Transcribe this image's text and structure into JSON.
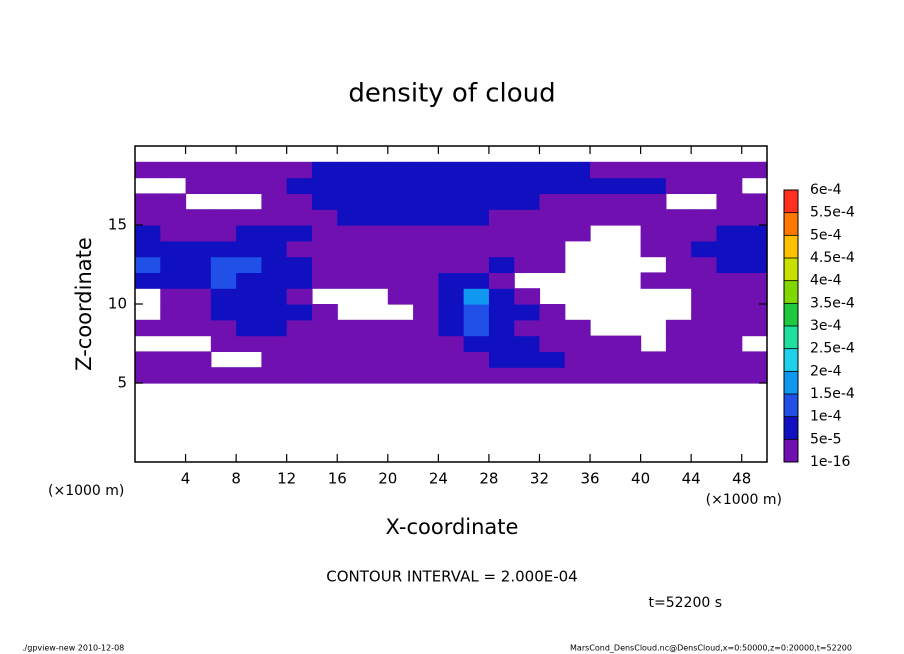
{
  "chart_data": {
    "type": "contour",
    "title": "density of cloud",
    "x_label": "X-coordinate",
    "y_label": "Z-coordinate",
    "x_unit_left": "(×1000 m)",
    "x_unit_right": "(×1000 m)",
    "contour_note": "CONTOUR INTERVAL = 2.000E-04",
    "time_note": "t=52200 s",
    "footer_left": "./gpview-new   2010-12-08",
    "footer_right": "MarsCond_DensCloud.nc@DensCloud,x=0:50000,z=0:20000,t=52200",
    "xlim": [
      0,
      50
    ],
    "ylim": [
      0,
      20
    ],
    "xticks": [
      4,
      8,
      12,
      16,
      20,
      24,
      28,
      32,
      36,
      40,
      44,
      48
    ],
    "yticks": [
      5,
      10,
      15
    ],
    "x": [
      1,
      3,
      5,
      7,
      9,
      11,
      13,
      15,
      17,
      19,
      21,
      23,
      25,
      27,
      29,
      31,
      33,
      35,
      37,
      39,
      41,
      43,
      45,
      47,
      49
    ],
    "z": [
      0.5,
      1.5,
      2.5,
      3.5,
      4.5,
      5.5,
      6.5,
      7.5,
      8.5,
      9.5,
      10.5,
      11.5,
      12.5,
      13.5,
      14.5,
      15.5,
      16.5,
      17.5,
      18.5,
      19.5
    ],
    "field": [
      [
        null,
        null,
        null,
        null,
        null,
        null,
        null,
        null,
        null,
        null,
        null,
        null,
        null,
        null,
        null,
        null,
        null,
        null,
        null,
        null,
        null,
        null,
        null,
        null,
        null
      ],
      [
        null,
        null,
        null,
        null,
        null,
        null,
        null,
        null,
        null,
        null,
        null,
        null,
        null,
        null,
        null,
        null,
        null,
        null,
        null,
        null,
        null,
        null,
        null,
        null,
        null
      ],
      [
        null,
        null,
        null,
        null,
        null,
        null,
        null,
        null,
        null,
        null,
        null,
        null,
        null,
        null,
        null,
        null,
        null,
        null,
        null,
        null,
        null,
        null,
        null,
        null,
        null
      ],
      [
        null,
        null,
        null,
        null,
        null,
        null,
        null,
        null,
        null,
        null,
        null,
        null,
        null,
        null,
        null,
        null,
        null,
        null,
        null,
        null,
        null,
        null,
        null,
        null,
        null
      ],
      [
        null,
        null,
        null,
        null,
        null,
        null,
        null,
        null,
        null,
        null,
        null,
        null,
        null,
        null,
        null,
        null,
        null,
        null,
        null,
        null,
        null,
        null,
        null,
        null,
        null
      ],
      [
        1e-16,
        1e-16,
        1e-16,
        1e-16,
        1e-16,
        1e-16,
        1e-16,
        1e-16,
        1e-16,
        1e-16,
        1e-16,
        1e-16,
        1e-16,
        1e-16,
        1e-16,
        1e-16,
        1e-16,
        1e-16,
        1e-16,
        1e-16,
        1e-16,
        1e-16,
        1e-16,
        1e-16,
        1e-16
      ],
      [
        1e-16,
        1e-16,
        1e-16,
        null,
        null,
        1e-16,
        1e-16,
        1e-16,
        1e-16,
        1e-16,
        1e-16,
        1e-16,
        1e-16,
        1e-16,
        5e-05,
        5e-05,
        5e-05,
        1e-16,
        1e-16,
        1e-16,
        1e-16,
        1e-16,
        1e-16,
        1e-16,
        1e-16
      ],
      [
        null,
        null,
        null,
        1e-16,
        1e-16,
        1e-16,
        1e-16,
        1e-16,
        1e-16,
        1e-16,
        1e-16,
        1e-16,
        1e-16,
        5e-05,
        5e-05,
        5e-05,
        1e-16,
        1e-16,
        1e-16,
        1e-16,
        null,
        1e-16,
        1e-16,
        1e-16,
        null
      ],
      [
        1e-16,
        1e-16,
        1e-16,
        1e-16,
        5e-05,
        5e-05,
        1e-16,
        1e-16,
        1e-16,
        1e-16,
        1e-16,
        1e-16,
        5e-05,
        0.0001,
        5e-05,
        1e-16,
        1e-16,
        1e-16,
        null,
        null,
        null,
        1e-16,
        1e-16,
        1e-16,
        1e-16
      ],
      [
        null,
        1e-16,
        1e-16,
        5e-05,
        5e-05,
        5e-05,
        5e-05,
        1e-16,
        null,
        null,
        null,
        1e-16,
        5e-05,
        0.0001,
        5e-05,
        5e-05,
        1e-16,
        null,
        null,
        null,
        null,
        null,
        1e-16,
        1e-16,
        1e-16
      ],
      [
        null,
        1e-16,
        1e-16,
        5e-05,
        5e-05,
        5e-05,
        1e-16,
        null,
        null,
        null,
        1e-16,
        1e-16,
        5e-05,
        0.00015,
        5e-05,
        1e-16,
        null,
        null,
        null,
        null,
        null,
        null,
        1e-16,
        1e-16,
        1e-16
      ],
      [
        5e-05,
        5e-05,
        5e-05,
        0.0001,
        5e-05,
        5e-05,
        5e-05,
        1e-16,
        1e-16,
        1e-16,
        1e-16,
        1e-16,
        5e-05,
        5e-05,
        1e-16,
        null,
        null,
        null,
        null,
        null,
        1e-16,
        1e-16,
        1e-16,
        1e-16,
        1e-16
      ],
      [
        0.0001,
        5e-05,
        5e-05,
        0.0001,
        0.0001,
        5e-05,
        5e-05,
        1e-16,
        1e-16,
        1e-16,
        1e-16,
        1e-16,
        1e-16,
        1e-16,
        5e-05,
        1e-16,
        1e-16,
        null,
        null,
        null,
        null,
        1e-16,
        1e-16,
        5e-05,
        5e-05
      ],
      [
        5e-05,
        5e-05,
        5e-05,
        5e-05,
        5e-05,
        5e-05,
        1e-16,
        1e-16,
        1e-16,
        1e-16,
        1e-16,
        1e-16,
        1e-16,
        1e-16,
        1e-16,
        1e-16,
        1e-16,
        null,
        null,
        null,
        1e-16,
        1e-16,
        5e-05,
        5e-05,
        5e-05
      ],
      [
        5e-05,
        1e-16,
        1e-16,
        1e-16,
        5e-05,
        5e-05,
        5e-05,
        1e-16,
        1e-16,
        1e-16,
        1e-16,
        1e-16,
        1e-16,
        1e-16,
        1e-16,
        1e-16,
        1e-16,
        1e-16,
        null,
        null,
        1e-16,
        1e-16,
        1e-16,
        5e-05,
        5e-05
      ],
      [
        1e-16,
        1e-16,
        1e-16,
        1e-16,
        1e-16,
        1e-16,
        1e-16,
        1e-16,
        5e-05,
        5e-05,
        5e-05,
        5e-05,
        5e-05,
        5e-05,
        1e-16,
        1e-16,
        1e-16,
        1e-16,
        1e-16,
        1e-16,
        1e-16,
        1e-16,
        1e-16,
        1e-16,
        1e-16
      ],
      [
        1e-16,
        1e-16,
        null,
        null,
        null,
        1e-16,
        1e-16,
        5e-05,
        5e-05,
        5e-05,
        5e-05,
        5e-05,
        5e-05,
        5e-05,
        5e-05,
        5e-05,
        1e-16,
        1e-16,
        1e-16,
        1e-16,
        1e-16,
        null,
        null,
        1e-16,
        1e-16
      ],
      [
        null,
        null,
        1e-16,
        1e-16,
        1e-16,
        1e-16,
        5e-05,
        5e-05,
        5e-05,
        5e-05,
        5e-05,
        5e-05,
        5e-05,
        5e-05,
        5e-05,
        5e-05,
        5e-05,
        5e-05,
        5e-05,
        5e-05,
        5e-05,
        1e-16,
        1e-16,
        1e-16,
        null
      ],
      [
        1e-16,
        1e-16,
        1e-16,
        1e-16,
        1e-16,
        1e-16,
        1e-16,
        5e-05,
        5e-05,
        5e-05,
        5e-05,
        5e-05,
        5e-05,
        5e-05,
        5e-05,
        5e-05,
        5e-05,
        5e-05,
        1e-16,
        1e-16,
        1e-16,
        1e-16,
        1e-16,
        1e-16,
        1e-16
      ],
      [
        null,
        null,
        null,
        null,
        null,
        null,
        null,
        null,
        null,
        null,
        null,
        null,
        null,
        null,
        null,
        null,
        null,
        null,
        null,
        null,
        null,
        null,
        null,
        null,
        null
      ]
    ],
    "colorbar": {
      "ticks": [
        {
          "value": 1e-16,
          "label": "1e-16"
        },
        {
          "value": 5e-05,
          "label": "5e-5"
        },
        {
          "value": 0.0001,
          "label": "1e-4"
        },
        {
          "value": 0.00015,
          "label": "1.5e-4"
        },
        {
          "value": 0.0002,
          "label": "2e-4"
        },
        {
          "value": 0.00025,
          "label": "2.5e-4"
        },
        {
          "value": 0.0003,
          "label": "3e-4"
        },
        {
          "value": 0.00035,
          "label": "3.5e-4"
        },
        {
          "value": 0.0004,
          "label": "4e-4"
        },
        {
          "value": 0.00045,
          "label": "4.5e-4"
        },
        {
          "value": 0.0005,
          "label": "5e-4"
        },
        {
          "value": 0.00055,
          "label": "5.5e-4"
        },
        {
          "value": 0.0006,
          "label": "6e-4"
        }
      ],
      "colors": [
        "#7010b0",
        "#1010c0",
        "#2050e8",
        "#1098f0",
        "#20d0e8",
        "#20e0a0",
        "#20c840",
        "#80d800",
        "#c8e000",
        "#ffc000",
        "#ff7800",
        "#ff3020",
        "#ff8c80"
      ]
    }
  }
}
